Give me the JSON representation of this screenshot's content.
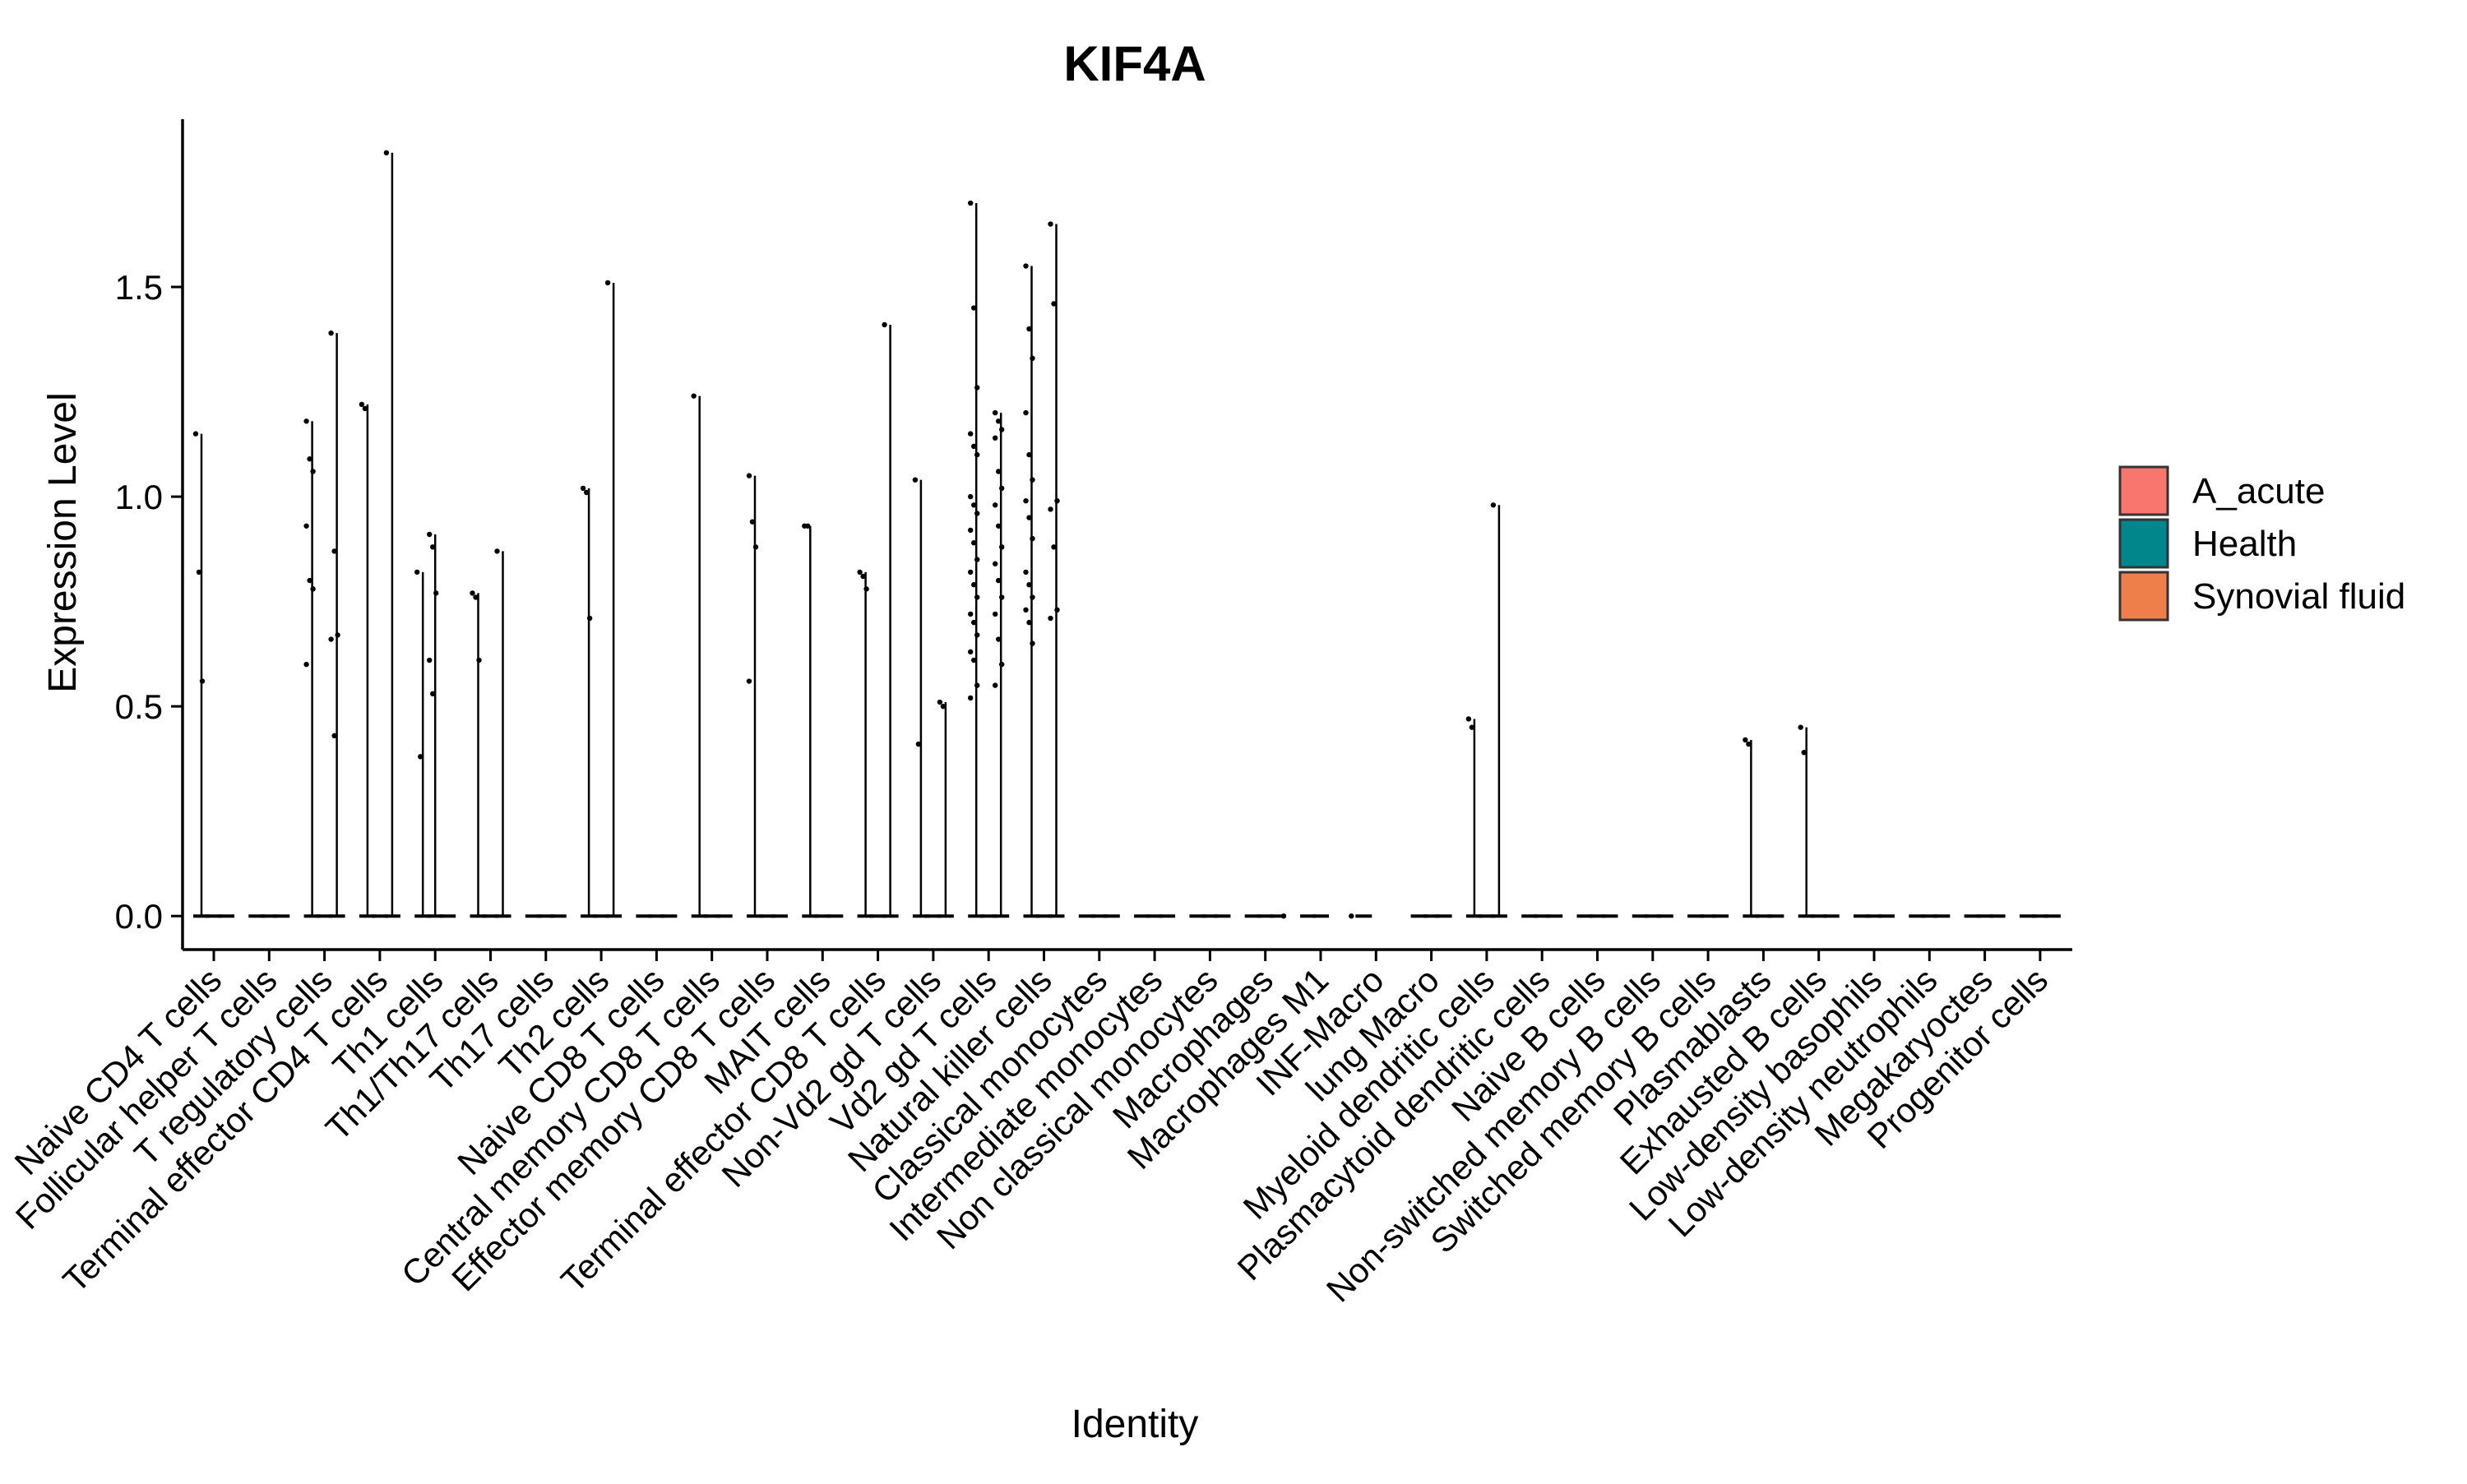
{
  "chart_data": {
    "type": "violin",
    "title": "KIF4A",
    "xlabel": "Identity",
    "ylabel": "Expression Level",
    "ylim": [
      -0.08,
      1.9
    ],
    "yticks": [
      0.0,
      0.5,
      1.0,
      1.5
    ],
    "ytick_labels": [
      "0.0",
      "0.5",
      "1.0",
      "1.5"
    ],
    "grid": false,
    "legend_position": "right",
    "legend": [
      {
        "name": "A_acute",
        "color": "#F8766D"
      },
      {
        "name": "Health",
        "color": "#00868B"
      },
      {
        "name": "Synovial fluid",
        "color": "#EE7F4B"
      }
    ],
    "categories": [
      "Naive CD4 T cells",
      "Follicular helper T cells",
      "T regulatory cells",
      "Terminal effector CD4 T cells",
      "Th1 cells",
      "Th1/Th17 cells",
      "Th17 cells",
      "Th2 cells",
      "Naive CD8 T cells",
      "Central memory CD8 T cells",
      "Effector memory CD8 T cells",
      "MAIT cells",
      "Terminal effector CD8 T cells",
      "Non-Vd2 gd T cells",
      "Vd2 gd T cells",
      "Natural killer cells",
      "Classical monocytes",
      "Intermediate monocytes",
      "Non classical monocytes",
      "Macrophages",
      "Macrophages M1",
      "INF-Macro",
      "lung Macro",
      "Myeloid dendritic cells",
      "Plasmacytoid dendritic cells",
      "Naive B cells",
      "Non-switched memory B cells",
      "Switched memory B cells",
      "Plasmablasts",
      "Exhausted B cells",
      "Low-density basophils",
      "Low-density neutrophils",
      "Megakaryoctes",
      "Progenitor cells"
    ],
    "series": [
      {
        "name": "A_acute",
        "max_values": [
          1.15,
          0,
          1.18,
          1.22,
          0.82,
          0.77,
          0,
          1.02,
          0,
          1.24,
          1.05,
          0.93,
          0.82,
          1.04,
          1.7,
          1.55,
          0,
          0,
          0,
          0,
          0,
          0,
          0,
          0.47,
          0,
          0,
          0,
          0,
          0.42,
          0.45,
          0,
          0,
          0,
          0
        ]
      },
      {
        "name": "Health",
        "max_values": [
          0,
          0,
          0,
          0,
          0.91,
          0,
          0,
          0,
          0,
          0,
          0,
          0,
          0,
          0,
          0,
          0,
          0,
          0,
          0,
          0,
          0,
          null,
          0,
          0,
          0,
          0,
          0,
          0,
          0,
          0,
          0,
          0,
          0,
          0
        ]
      },
      {
        "name": "Synovial fluid",
        "max_values": [
          0,
          0,
          1.39,
          1.82,
          0,
          0.87,
          0,
          1.51,
          0,
          0,
          0,
          0,
          1.41,
          0.51,
          1.2,
          1.65,
          0,
          0,
          0,
          0,
          null,
          null,
          0,
          0.98,
          0,
          0,
          0,
          0,
          0,
          0,
          0,
          0,
          0,
          0
        ]
      }
    ],
    "points": [
      {
        "c": 0,
        "s": 0,
        "y": [
          1.15,
          0.82,
          0.56
        ]
      },
      {
        "c": 2,
        "s": 0,
        "y": [
          1.18,
          1.09,
          1.06,
          0.93,
          0.8,
          0.78,
          0.6
        ]
      },
      {
        "c": 2,
        "s": 2,
        "y": [
          1.39,
          0.87,
          0.67,
          0.66,
          0.43
        ]
      },
      {
        "c": 3,
        "s": 0,
        "y": [
          1.22,
          1.21
        ]
      },
      {
        "c": 3,
        "s": 2,
        "y": [
          1.82
        ]
      },
      {
        "c": 4,
        "s": 0,
        "y": [
          0.82,
          0.38
        ]
      },
      {
        "c": 4,
        "s": 1,
        "y": [
          0.91,
          0.88,
          0.77,
          0.61,
          0.53
        ]
      },
      {
        "c": 5,
        "s": 0,
        "y": [
          0.77,
          0.76,
          0.61
        ]
      },
      {
        "c": 5,
        "s": 2,
        "y": [
          0.87
        ]
      },
      {
        "c": 7,
        "s": 0,
        "y": [
          1.02,
          1.01,
          0.71
        ]
      },
      {
        "c": 7,
        "s": 2,
        "y": [
          1.51
        ]
      },
      {
        "c": 9,
        "s": 0,
        "y": [
          1.24
        ]
      },
      {
        "c": 10,
        "s": 0,
        "y": [
          1.05,
          0.94,
          0.88,
          0.56
        ]
      },
      {
        "c": 11,
        "s": 0,
        "y": [
          0.93,
          0.93
        ]
      },
      {
        "c": 12,
        "s": 0,
        "y": [
          0.82,
          0.81,
          0.78
        ]
      },
      {
        "c": 12,
        "s": 2,
        "y": [
          1.41
        ]
      },
      {
        "c": 13,
        "s": 0,
        "y": [
          1.04,
          0.41
        ]
      },
      {
        "c": 13,
        "s": 2,
        "y": [
          0.51,
          0.5
        ]
      },
      {
        "c": 14,
        "s": 0,
        "y": [
          1.7,
          1.45,
          1.26,
          1.15,
          1.12,
          1.1,
          1.0,
          0.98,
          0.96,
          0.92,
          0.89,
          0.85,
          0.82,
          0.79,
          0.76,
          0.72,
          0.7,
          0.67,
          0.63,
          0.61,
          0.55,
          0.52
        ]
      },
      {
        "c": 14,
        "s": 2,
        "y": [
          1.2,
          1.18,
          1.16,
          1.14,
          1.06,
          1.02,
          0.98,
          0.93,
          0.88,
          0.84,
          0.8,
          0.76,
          0.72,
          0.66,
          0.6,
          0.55
        ]
      },
      {
        "c": 15,
        "s": 0,
        "y": [
          1.55,
          1.4,
          1.33,
          1.2,
          1.1,
          1.04,
          0.99,
          0.95,
          0.9,
          0.82,
          0.79,
          0.76,
          0.73,
          0.7,
          0.65
        ]
      },
      {
        "c": 15,
        "s": 2,
        "y": [
          1.65,
          1.46,
          0.99,
          0.97,
          0.88,
          0.73,
          0.71
        ]
      },
      {
        "c": 23,
        "s": 0,
        "y": [
          0.47,
          0.45
        ]
      },
      {
        "c": 23,
        "s": 2,
        "y": [
          0.98
        ]
      },
      {
        "c": 28,
        "s": 0,
        "y": [
          0.42,
          0.41
        ]
      },
      {
        "c": 29,
        "s": 0,
        "y": [
          0.45,
          0.39
        ]
      }
    ]
  }
}
